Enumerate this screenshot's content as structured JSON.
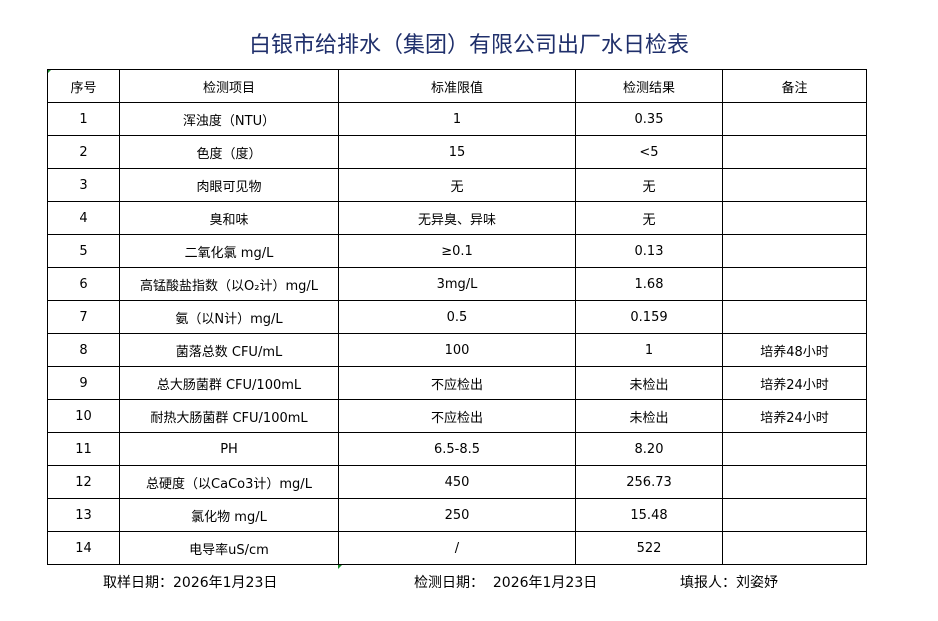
{
  "title": "白银市给排水（集团）有限公司出厂水日检表",
  "headers": [
    "序号",
    "检测项目",
    "标准限值",
    "检测结果",
    "备注"
  ],
  "rows": [
    [
      "1",
      "浑浊度（NTU）",
      "1",
      "0.35",
      ""
    ],
    [
      "2",
      "色度（度）",
      "15",
      "<5",
      ""
    ],
    [
      "3",
      "肉眼可见物",
      "无",
      "无",
      ""
    ],
    [
      "4",
      "臭和味",
      "无异臭、异味",
      "无",
      ""
    ],
    [
      "5",
      "二氧化氯 mg/L",
      "≥0.1",
      "0.13",
      ""
    ],
    [
      "6",
      "高锰酸盐指数（以O₂计）mg/L",
      "3mg/L",
      "1.68",
      ""
    ],
    [
      "7",
      "氨（以N计）mg/L",
      "0.5",
      "0.159",
      ""
    ],
    [
      "8",
      "菌落总数 CFU/mL",
      "100",
      "1",
      "培养48小时"
    ],
    [
      "9",
      "总大肠菌群 CFU/100mL",
      "不应检出",
      "未检出",
      "培养24小时"
    ],
    [
      "10",
      "耐热大肠菌群 CFU/100mL",
      "不应检出",
      "未检出",
      "培养24小时"
    ],
    [
      "11",
      "PH",
      "6.5-8.5",
      "8.20",
      ""
    ],
    [
      "12",
      "总硬度（以CaCo3计）mg/L",
      "450",
      "256.73",
      ""
    ],
    [
      "13",
      "氯化物 mg/L",
      "250",
      "15.48",
      ""
    ],
    [
      "14",
      "电导率uS/cm",
      "/",
      "522",
      ""
    ]
  ],
  "footer": {
    "sample_date": "取样日期：2026年1月23日",
    "test_date": "检测日期：  2026年1月23日",
    "reporter": "填报人：刘姿妤"
  }
}
